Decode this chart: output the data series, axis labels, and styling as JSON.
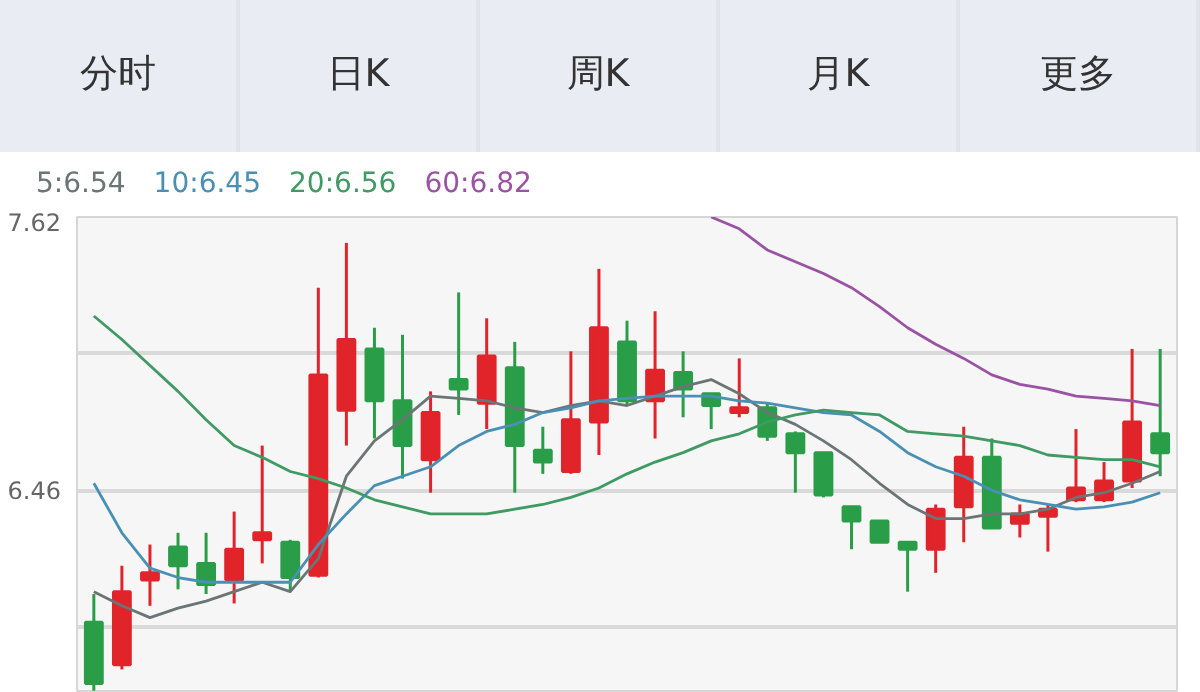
{
  "chart_data": {
    "type": "candlestick",
    "annotations": [
      "分时",
      "日K",
      "周K",
      "月K",
      "更多"
    ],
    "categories": [
      null,
      null,
      null,
      null,
      null,
      null,
      null,
      null,
      null,
      null,
      null,
      null,
      null,
      null,
      null,
      null,
      null,
      null,
      null,
      null,
      null,
      null,
      null,
      null,
      null,
      null,
      null,
      null,
      null,
      null,
      null,
      null,
      null,
      null,
      null,
      null,
      null,
      null,
      null
    ],
    "ohlc": [
      [
        5.9,
        6.02,
        5.61,
        5.64
      ],
      [
        5.72,
        6.14,
        5.7,
        6.03
      ],
      [
        6.08,
        6.23,
        5.97,
        6.11
      ],
      [
        6.22,
        6.28,
        6.04,
        6.14
      ],
      [
        6.15,
        6.28,
        6.02,
        6.06
      ],
      [
        6.08,
        6.37,
        5.98,
        6.21
      ],
      [
        6.25,
        6.65,
        6.15,
        6.28
      ],
      [
        6.24,
        6.25,
        6.03,
        6.09
      ],
      [
        6.1,
        7.32,
        6.09,
        6.95
      ],
      [
        6.8,
        7.51,
        6.65,
        7.1
      ],
      [
        7.06,
        7.15,
        6.68,
        6.84
      ],
      [
        6.84,
        7.12,
        6.51,
        6.65
      ],
      [
        6.59,
        6.88,
        6.45,
        6.79
      ],
      [
        6.93,
        7.3,
        6.78,
        6.89
      ],
      [
        6.83,
        7.19,
        6.72,
        7.03
      ],
      [
        6.98,
        7.09,
        6.45,
        6.65
      ],
      [
        6.63,
        6.73,
        6.53,
        6.58
      ],
      [
        6.54,
        7.05,
        6.53,
        6.76
      ],
      [
        6.75,
        7.4,
        6.61,
        7.15
      ],
      [
        7.09,
        7.18,
        6.82,
        6.84
      ],
      [
        6.84,
        7.22,
        6.68,
        6.97
      ],
      [
        6.96,
        7.05,
        6.77,
        6.89
      ],
      [
        6.87,
        6.87,
        6.72,
        6.82
      ],
      [
        6.79,
        7.02,
        6.77,
        6.81
      ],
      [
        6.81,
        6.83,
        6.67,
        6.69
      ],
      [
        6.7,
        6.71,
        6.45,
        6.62
      ],
      [
        6.62,
        6.62,
        6.43,
        6.44
      ],
      [
        6.39,
        6.39,
        6.21,
        6.33
      ],
      [
        6.33,
        6.33,
        6.24,
        6.24
      ],
      [
        6.24,
        6.24,
        6.03,
        6.21
      ],
      [
        6.21,
        6.4,
        6.11,
        6.38
      ],
      [
        6.39,
        6.73,
        6.24,
        6.6
      ],
      [
        6.6,
        6.68,
        6.3,
        6.3
      ],
      [
        6.32,
        6.4,
        6.26,
        6.36
      ],
      [
        6.35,
        6.4,
        6.2,
        6.38
      ],
      [
        6.42,
        6.72,
        6.41,
        6.47
      ],
      [
        6.42,
        6.58,
        6.41,
        6.5
      ],
      [
        6.5,
        7.06,
        6.47,
        6.75
      ],
      [
        6.7,
        7.06,
        6.52,
        6.62
      ]
    ],
    "colors": [
      "#2a9d48",
      "#e0242a",
      "#e0242a",
      "#2a9d48",
      "#2a9d48",
      "#e0242a",
      "#e0242a",
      "#2a9d48",
      "#e0242a",
      "#e0242a",
      "#2a9d48",
      "#2a9d48",
      "#e0242a",
      "#2a9d48",
      "#e0242a",
      "#2a9d48",
      "#2a9d48",
      "#e0242a",
      "#e0242a",
      "#2a9d48",
      "#e0242a",
      "#2a9d48",
      "#2a9d48",
      "#e0242a",
      "#2a9d48",
      "#2a9d48",
      "#2a9d48",
      "#2a9d48",
      "#2a9d48",
      "#2a9d48",
      "#e0242a",
      "#e0242a",
      "#2a9d48",
      "#e0242a",
      "#e0242a",
      "#e0242a",
      "#e0242a",
      "#e0242a",
      "#2a9d48"
    ],
    "series": [
      {
        "name": "5:6.54",
        "type": "line",
        "color": "#6b7575",
        "values": [
          6.03,
          5.97,
          5.92,
          5.96,
          5.99,
          6.03,
          6.07,
          6.03,
          6.17,
          6.52,
          6.67,
          6.76,
          6.86,
          6.85,
          6.84,
          6.81,
          6.79,
          6.82,
          6.84,
          6.82,
          6.86,
          6.9,
          6.93,
          6.87,
          6.79,
          6.74,
          6.67,
          6.59,
          6.49,
          6.4,
          6.34,
          6.34,
          6.36,
          6.36,
          6.38,
          6.43,
          6.45,
          6.49,
          6.54
        ]
      },
      {
        "name": "10:6.45",
        "type": "line",
        "color": "#4a90b4",
        "values": [
          6.49,
          6.28,
          6.13,
          6.09,
          6.07,
          6.07,
          6.07,
          6.07,
          6.23,
          6.36,
          6.48,
          6.52,
          6.56,
          6.65,
          6.71,
          6.74,
          6.79,
          6.81,
          6.84,
          6.85,
          6.86,
          6.86,
          6.86,
          6.84,
          6.83,
          6.81,
          6.79,
          6.78,
          6.71,
          6.62,
          6.56,
          6.52,
          6.46,
          6.42,
          6.4,
          6.38,
          6.39,
          6.41,
          6.45
        ]
      },
      {
        "name": "20:6.56",
        "type": "line",
        "color": "#3f9a63",
        "values": [
          7.2,
          7.1,
          6.99,
          6.88,
          6.76,
          6.65,
          6.6,
          6.54,
          6.51,
          6.47,
          6.42,
          6.39,
          6.36,
          6.36,
          6.36,
          6.38,
          6.4,
          6.43,
          6.47,
          6.53,
          6.58,
          6.62,
          6.67,
          6.7,
          6.75,
          6.78,
          6.8,
          6.79,
          6.78,
          6.71,
          6.7,
          6.69,
          6.67,
          6.65,
          6.61,
          6.6,
          6.59,
          6.59,
          6.56
        ]
      },
      {
        "name": "60:6.82",
        "type": "line",
        "color": "#9a52a3",
        "values": [
          null,
          null,
          null,
          null,
          null,
          null,
          null,
          null,
          null,
          null,
          null,
          null,
          null,
          null,
          null,
          null,
          null,
          null,
          null,
          null,
          null,
          null,
          7.62,
          7.57,
          7.48,
          7.43,
          7.38,
          7.32,
          7.24,
          7.15,
          7.08,
          7.02,
          6.95,
          6.91,
          6.89,
          6.86,
          6.85,
          6.84,
          6.82
        ]
      }
    ],
    "ylim": [
      5.6,
      7.62
    ],
    "yticks": [
      7.62,
      {
        "value": 7.04,
        "label": null
      },
      6.46,
      {
        "value": 5.88,
        "label": null
      }
    ],
    "grid": "y",
    "legend": "top left",
    "marker": "none"
  }
}
